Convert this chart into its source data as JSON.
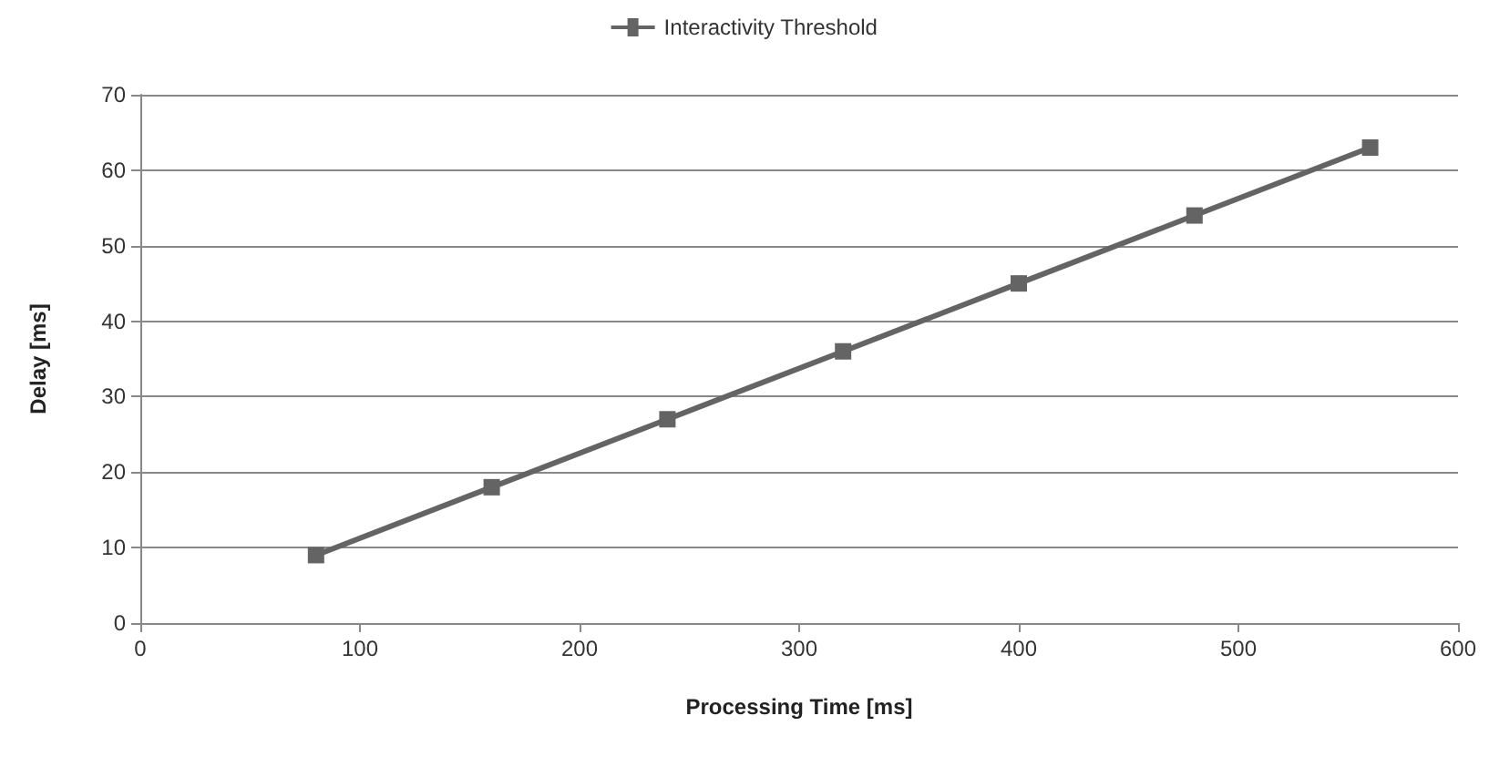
{
  "chart_data": {
    "type": "line",
    "xlabel": "Processing Time [ms]",
    "ylabel": "Delay [ms]",
    "series": [
      {
        "name": "Interactivity Threshold",
        "color": "#646464",
        "x": [
          80,
          160,
          240,
          320,
          400,
          480,
          560
        ],
        "values": [
          9,
          18,
          27,
          36,
          45,
          54,
          63
        ]
      }
    ],
    "xlim": [
      0,
      600
    ],
    "xticks": [
      0,
      100,
      200,
      300,
      400,
      500,
      600
    ],
    "ylim": [
      0,
      70
    ],
    "yticks": [
      0,
      10,
      20,
      30,
      40,
      50,
      60,
      70
    ],
    "grid": "y",
    "legend": "top",
    "marker": "square",
    "line_style": "solid"
  }
}
